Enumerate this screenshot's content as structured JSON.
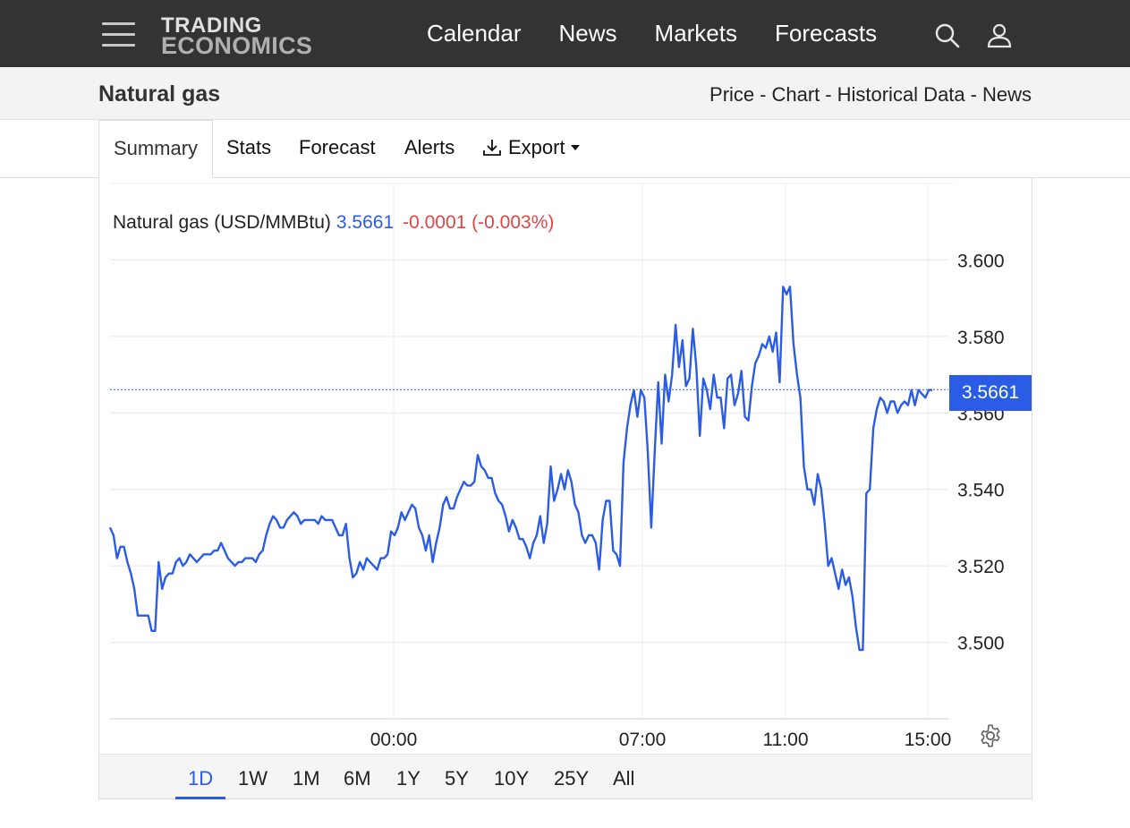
{
  "header": {
    "logo_line1": "TRADING",
    "logo_line2": "ECONOMICS",
    "nav": [
      "Calendar",
      "News",
      "Markets",
      "Forecasts"
    ]
  },
  "subheader": {
    "title": "Natural gas",
    "links": [
      "Price",
      "Chart",
      "Historical Data",
      "News"
    ],
    "separator": "-"
  },
  "tabs": {
    "summary": "Summary",
    "stats": "Stats",
    "forecast": "Forecast",
    "alerts": "Alerts",
    "export": "Export"
  },
  "legend": {
    "name": "Natural gas (USD/MMBtu)",
    "value": "3.5661",
    "change": "-0.0001 (-0.003%)"
  },
  "price_badge": "3.5661",
  "ranges": [
    "1D",
    "1W",
    "1M",
    "6M",
    "1Y",
    "5Y",
    "10Y",
    "25Y",
    "All"
  ],
  "active_range": "1D",
  "colors": {
    "line": "#2b5ce6",
    "negative": "#e04545",
    "topbar": "#333333"
  },
  "chart_data": {
    "type": "line",
    "series": [
      {
        "values": [
          3.53,
          3.528,
          3.522,
          3.525,
          3.525,
          3.521,
          3.518,
          3.514,
          3.507,
          3.507,
          3.507,
          3.507,
          3.503,
          3.503,
          3.521,
          3.514,
          3.517,
          3.518,
          3.518,
          3.521,
          3.522,
          3.52,
          3.521,
          3.523,
          3.522,
          3.521,
          3.522,
          3.523,
          3.523,
          3.523,
          3.524,
          3.524,
          3.526,
          3.524,
          3.522,
          3.521,
          3.52,
          3.521,
          3.521,
          3.522,
          3.522,
          3.522,
          3.521,
          3.523,
          3.524,
          3.528,
          3.531,
          3.533,
          3.532,
          3.53,
          3.53,
          3.532,
          3.533,
          3.534,
          3.533,
          3.531,
          3.532,
          3.532,
          3.532,
          3.532,
          3.531,
          3.533,
          3.532,
          3.532,
          3.532,
          3.53,
          3.528,
          3.528,
          3.531,
          3.522,
          3.517,
          3.518,
          3.521,
          3.519,
          3.522,
          3.521,
          3.52,
          3.519,
          3.522,
          3.522,
          3.523,
          3.529,
          3.528,
          3.53,
          3.534,
          3.532,
          3.534,
          3.536,
          3.535,
          3.53,
          3.528,
          3.524,
          3.528,
          3.521,
          3.526,
          3.53,
          3.536,
          3.538,
          3.535,
          3.535,
          3.538,
          3.54,
          3.542,
          3.541,
          3.541,
          3.542,
          3.549,
          3.546,
          3.545,
          3.543,
          3.543,
          3.539,
          3.537,
          3.536,
          3.533,
          3.529,
          3.532,
          3.53,
          3.527,
          3.527,
          3.525,
          3.522,
          3.526,
          3.528,
          3.533,
          3.526,
          3.531,
          3.546,
          3.537,
          3.54,
          3.544,
          3.54,
          3.545,
          3.542,
          3.536,
          3.534,
          3.528,
          3.526,
          3.528,
          3.528,
          3.526,
          3.519,
          3.532,
          3.537,
          3.537,
          3.524,
          3.523,
          3.52,
          3.547,
          3.556,
          3.562,
          3.566,
          3.559,
          3.566,
          3.564,
          3.55,
          3.53,
          3.55,
          3.568,
          3.552,
          3.57,
          3.563,
          3.57,
          3.583,
          3.572,
          3.579,
          3.567,
          3.569,
          3.582,
          3.572,
          3.554,
          3.569,
          3.566,
          3.561,
          3.57,
          3.564,
          3.564,
          3.556,
          3.569,
          3.57,
          3.562,
          3.565,
          3.571,
          3.559,
          3.558,
          3.567,
          3.573,
          3.575,
          3.578,
          3.577,
          3.58,
          3.576,
          3.581,
          3.568,
          3.593,
          3.591,
          3.593,
          3.578,
          3.57,
          3.564,
          3.546,
          3.54,
          3.54,
          3.536,
          3.544,
          3.54,
          3.531,
          3.52,
          3.522,
          3.518,
          3.514,
          3.519,
          3.515,
          3.517,
          3.512,
          3.504,
          3.498,
          3.498,
          3.539,
          3.54,
          3.556,
          3.561,
          3.564,
          3.563,
          3.56,
          3.563,
          3.563,
          3.56,
          3.562,
          3.563,
          3.562,
          3.566,
          3.562,
          3.566,
          3.565,
          3.564,
          3.566,
          3.566
        ]
      }
    ],
    "x_ticks": [
      "00:00",
      "07:00",
      "11:00",
      "15:00"
    ],
    "y_ticks": [
      3.5,
      3.52,
      3.54,
      3.56,
      3.58,
      3.6
    ],
    "ylim": [
      3.48,
      3.62
    ],
    "current": 3.5661,
    "grid": true
  }
}
